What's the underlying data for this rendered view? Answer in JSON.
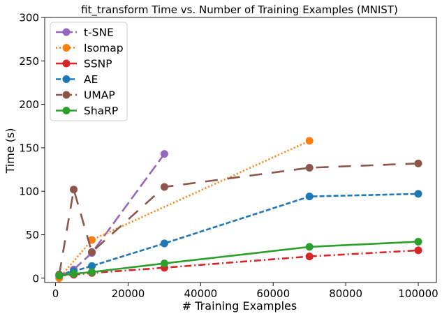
{
  "chart_data": {
    "type": "line",
    "title": "fit_transform Time vs. Number of Training Examples (MNIST)",
    "xlabel": "# Training Examples",
    "ylabel": "Time (s)",
    "xlim": [
      -3000,
      105000
    ],
    "ylim": [
      -5,
      300
    ],
    "xticks": [
      0,
      20000,
      40000,
      60000,
      80000,
      100000
    ],
    "yticks": [
      0,
      50,
      100,
      150,
      200,
      250,
      300
    ],
    "xtick_labels": [
      "0",
      "20000",
      "40000",
      "60000",
      "80000",
      "100000"
    ],
    "ytick_labels": [
      "0",
      "50",
      "100",
      "150",
      "200",
      "250",
      "300"
    ],
    "grid": false,
    "legend_position": "top-left",
    "series": [
      {
        "name": "t-SNE",
        "color": "#9467bd",
        "dash": "long-dash",
        "x": [
          1000,
          5000,
          10000,
          30000
        ],
        "y": [
          2,
          10,
          29,
          143
        ]
      },
      {
        "name": "Isomap",
        "color": "#ff7f0e",
        "dash": "dotted",
        "x": [
          1000,
          10000,
          70000
        ],
        "y": [
          0,
          44,
          158
        ]
      },
      {
        "name": "SSNP",
        "color": "#d62728",
        "dash": "dash-dot",
        "x": [
          1000,
          5000,
          10000,
          30000,
          70000,
          100000
        ],
        "y": [
          3,
          4,
          6,
          12,
          25,
          32
        ]
      },
      {
        "name": "AE",
        "color": "#1f77b4",
        "dash": "dashed",
        "x": [
          1000,
          5000,
          10000,
          30000,
          70000,
          100000
        ],
        "y": [
          4,
          8,
          14,
          40,
          94,
          97
        ]
      },
      {
        "name": "UMAP",
        "color": "#8c564b",
        "dash": "loose-dash",
        "x": [
          1000,
          5000,
          10000,
          30000,
          70000,
          100000
        ],
        "y": [
          4,
          102,
          30,
          105,
          127,
          132
        ]
      },
      {
        "name": "ShaRP",
        "color": "#2ca02c",
        "dash": "solid",
        "x": [
          1000,
          5000,
          10000,
          30000,
          70000,
          100000
        ],
        "y": [
          3,
          5,
          7,
          17,
          36,
          42
        ]
      }
    ]
  }
}
